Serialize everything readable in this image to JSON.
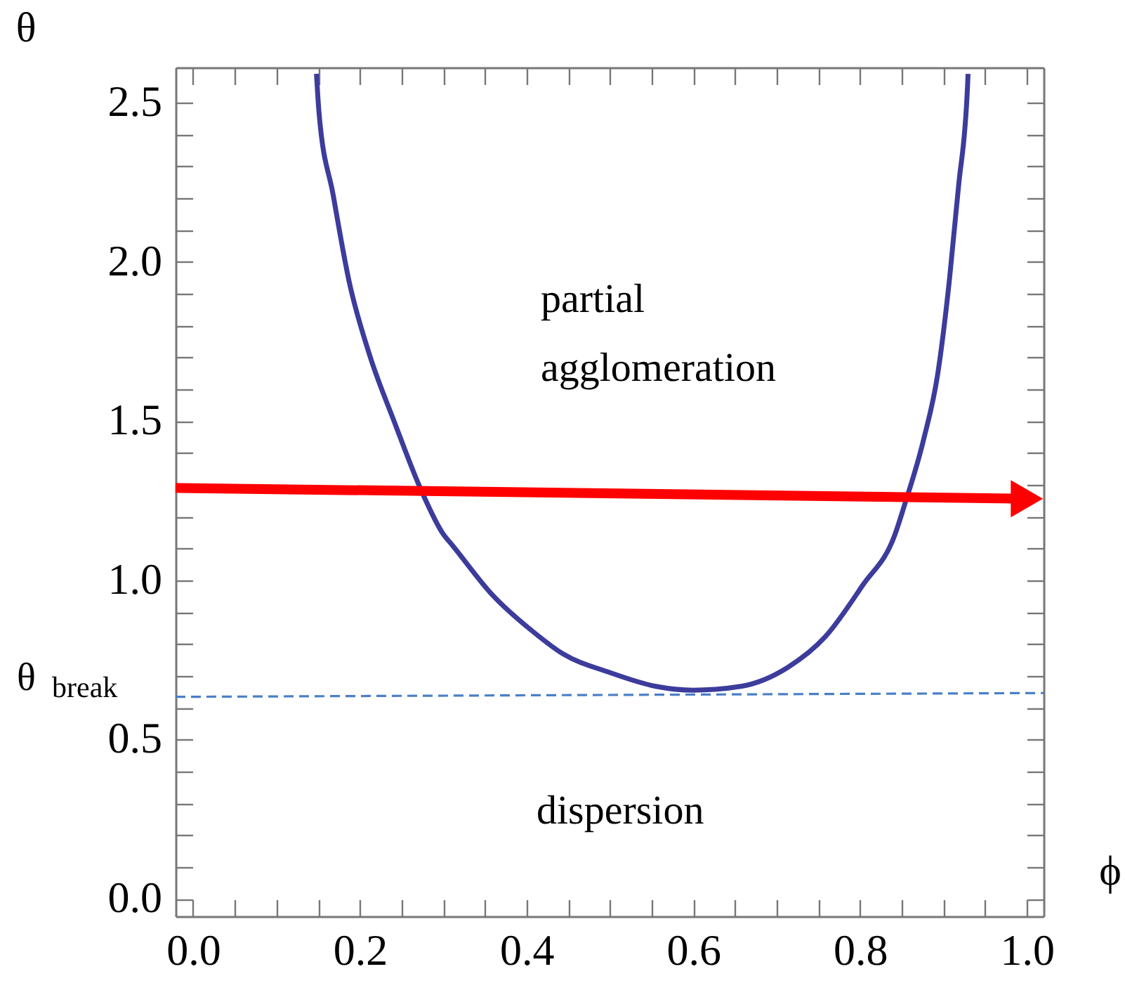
{
  "chart_data": {
    "type": "line",
    "xlabel": "ϕ",
    "ylabel": "θ",
    "xlim": [
      -0.021,
      1.02
    ],
    "ylim": [
      -0.055,
      2.61
    ],
    "xticks": [
      {
        "value": 0,
        "label": "0.0"
      },
      {
        "value": 0.05,
        "label": null
      },
      {
        "value": 0.1,
        "label": null
      },
      {
        "value": 0.15,
        "label": null
      },
      0.2,
      {
        "value": 0.25,
        "label": null
      },
      {
        "value": 0.3,
        "label": null
      },
      {
        "value": 0.35,
        "label": null
      },
      0.4,
      {
        "value": 0.45,
        "label": null
      },
      {
        "value": 0.5,
        "label": null
      },
      {
        "value": 0.55,
        "label": null
      },
      0.6,
      {
        "value": 0.65,
        "label": null
      },
      {
        "value": 0.7,
        "label": null
      },
      {
        "value": 0.75,
        "label": null
      },
      0.8,
      {
        "value": 0.85,
        "label": null
      },
      {
        "value": 0.9,
        "label": null
      },
      {
        "value": 0.95,
        "label": null
      },
      {
        "value": 1,
        "label": "1.0"
      }
    ],
    "yticks": [
      {
        "value": 0,
        "label": "0.0"
      },
      {
        "value": 0.1,
        "label": null
      },
      {
        "value": 0.2,
        "label": null
      },
      {
        "value": 0.3,
        "label": null
      },
      {
        "value": 0.4,
        "label": null
      },
      0.5,
      {
        "value": 0.6,
        "label": null
      },
      {
        "value": 0.7,
        "label": null
      },
      {
        "value": 0.8,
        "label": null
      },
      {
        "value": 0.9,
        "label": null
      },
      {
        "value": 1,
        "label": "1.0"
      },
      {
        "value": 1.1,
        "label": null
      },
      {
        "value": 1.2,
        "label": null
      },
      {
        "value": 1.3,
        "label": null
      },
      {
        "value": 1.4,
        "label": null
      },
      1.5,
      {
        "value": 1.6,
        "label": null
      },
      {
        "value": 1.7,
        "label": null
      },
      {
        "value": 1.8,
        "label": null
      },
      {
        "value": 1.9,
        "label": null
      },
      {
        "value": 2,
        "label": "2.0"
      },
      {
        "value": 2.1,
        "label": null
      },
      {
        "value": 2.2,
        "label": null
      },
      {
        "value": 2.3,
        "label": null
      },
      {
        "value": 2.4,
        "label": null
      },
      2.5
    ],
    "series": [
      {
        "color": "#3c3c9c",
        "x": [
          0.148,
          0.151,
          0.168,
          0.187,
          0.212,
          0.241,
          0.274,
          0.3,
          0.311,
          0.359,
          0.409,
          0.443,
          0.499,
          0.555,
          0.6,
          0.657,
          0.713,
          0.758,
          0.803,
          0.842,
          0.853,
          0.876,
          0.893,
          0.907,
          0.918,
          0.929,
          0.9295
        ],
        "values": [
          2.59,
          2.47,
          2.21,
          1.94,
          1.705,
          1.5,
          1.28,
          1.145,
          1.11,
          0.954,
          0.836,
          0.77,
          0.711,
          0.667,
          0.655,
          0.667,
          0.726,
          0.822,
          0.984,
          1.145,
          1.234,
          1.44,
          1.646,
          1.94,
          2.235,
          2.56,
          2.59
        ]
      },
      {
        "name": "θ$_{break}$",
        "line_style": "dashed",
        "color": "#4a7fc8",
        "x": [
          -0.021,
          1.02
        ],
        "values": [
          0.634,
          0.646
        ]
      },
      {
        "color": "#ff0000",
        "marker": "triangle",
        "x": [
          -0.021,
          1.0
        ],
        "values": [
          1.29,
          1.256
        ]
      }
    ],
    "annotations": [
      "partial\nagglomeration",
      "dispersion"
    ]
  }
}
